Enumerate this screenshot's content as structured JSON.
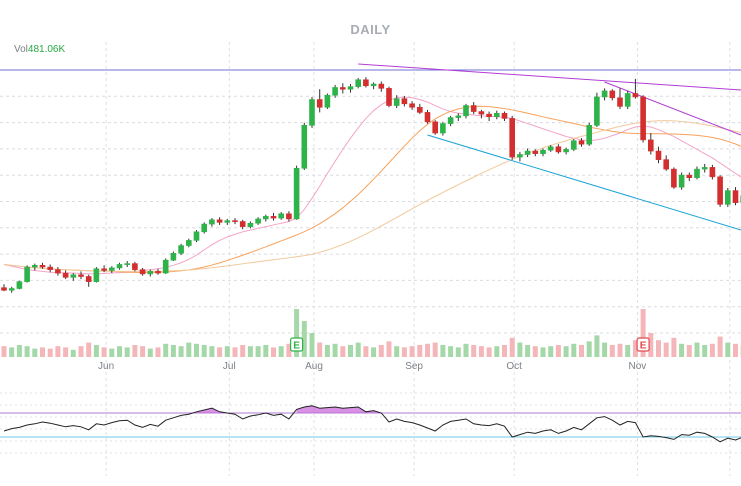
{
  "chart_data": {
    "type": "candlestick",
    "title": "DAILY",
    "volume_label": "Vol",
    "volume_value": "481.06K",
    "x_ticks": [
      "Jun",
      "Jul",
      "Aug",
      "Sep",
      "Oct",
      "Nov"
    ],
    "earnings_markers": [
      {
        "label": "E",
        "kind": "positive"
      },
      {
        "label": "E",
        "kind": "negative"
      }
    ],
    "candles": [
      [
        33.2,
        33.6,
        32.8,
        32.9
      ],
      [
        32.9,
        33.3,
        32.6,
        33.1
      ],
      [
        33.1,
        34.0,
        33.0,
        33.9
      ],
      [
        33.9,
        35.8,
        33.8,
        35.6
      ],
      [
        35.6,
        36.0,
        35.2,
        35.8
      ],
      [
        35.8,
        36.1,
        35.4,
        35.6
      ],
      [
        35.6,
        35.9,
        35.0,
        35.3
      ],
      [
        35.3,
        35.6,
        34.6,
        34.9
      ],
      [
        34.9,
        35.2,
        34.2,
        34.4
      ],
      [
        34.4,
        34.9,
        34.0,
        34.7
      ],
      [
        34.7,
        35.1,
        34.2,
        34.5
      ],
      [
        34.5,
        34.7,
        33.3,
        33.9
      ],
      [
        33.9,
        35.6,
        33.8,
        35.4
      ],
      [
        35.4,
        35.8,
        35.0,
        35.2
      ],
      [
        35.2,
        35.7,
        34.9,
        35.5
      ],
      [
        35.5,
        36.1,
        35.3,
        35.9
      ],
      [
        35.9,
        36.3,
        35.6,
        36.0
      ],
      [
        36.0,
        36.2,
        35.1,
        35.3
      ],
      [
        35.3,
        35.5,
        34.6,
        34.8
      ],
      [
        34.8,
        35.3,
        34.5,
        35.1
      ],
      [
        35.1,
        35.4,
        34.7,
        34.9
      ],
      [
        34.9,
        36.6,
        34.8,
        36.4
      ],
      [
        36.4,
        37.4,
        36.3,
        37.2
      ],
      [
        37.2,
        38.3,
        37.0,
        38.1
      ],
      [
        38.1,
        38.9,
        37.9,
        38.7
      ],
      [
        38.7,
        39.9,
        38.5,
        39.7
      ],
      [
        39.7,
        40.8,
        39.5,
        40.6
      ],
      [
        40.6,
        41.3,
        40.3,
        41.1
      ],
      [
        41.1,
        41.4,
        40.5,
        40.8
      ],
      [
        40.8,
        41.2,
        40.5,
        41.0
      ],
      [
        41.0,
        41.3,
        40.6,
        40.9
      ],
      [
        40.9,
        41.1,
        40.0,
        40.3
      ],
      [
        40.3,
        40.9,
        40.1,
        40.7
      ],
      [
        40.7,
        41.4,
        40.5,
        41.2
      ],
      [
        41.2,
        41.7,
        40.9,
        41.5
      ],
      [
        41.5,
        41.9,
        41.0,
        41.3
      ],
      [
        41.3,
        42.0,
        41.1,
        41.8
      ],
      [
        41.8,
        42.1,
        40.9,
        41.2
      ],
      [
        41.2,
        47.4,
        41.1,
        47.1
      ],
      [
        47.1,
        52.4,
        46.9,
        52.1
      ],
      [
        52.1,
        55.4,
        51.8,
        55.1
      ],
      [
        55.1,
        56.3,
        53.6,
        54.2
      ],
      [
        54.2,
        55.8,
        54.0,
        55.6
      ],
      [
        55.6,
        56.8,
        55.3,
        56.5
      ],
      [
        56.5,
        57.0,
        55.8,
        56.3
      ],
      [
        56.3,
        56.9,
        55.9,
        56.6
      ],
      [
        56.6,
        57.6,
        56.4,
        57.4
      ],
      [
        57.4,
        57.7,
        56.5,
        56.7
      ],
      [
        56.7,
        57.1,
        56.3,
        56.9
      ],
      [
        56.9,
        57.2,
        56.0,
        56.4
      ],
      [
        56.4,
        56.6,
        54.2,
        54.4
      ],
      [
        54.4,
        55.6,
        54.1,
        55.2
      ],
      [
        55.2,
        55.5,
        54.3,
        54.6
      ],
      [
        54.6,
        54.9,
        53.9,
        54.2
      ],
      [
        54.2,
        54.6,
        53.4,
        53.6
      ],
      [
        53.6,
        53.9,
        52.3,
        52.5
      ],
      [
        52.5,
        52.7,
        51.0,
        51.2
      ],
      [
        51.2,
        52.5,
        50.9,
        52.3
      ],
      [
        52.3,
        53.2,
        52.0,
        53.0
      ],
      [
        53.0,
        53.5,
        52.6,
        53.2
      ],
      [
        53.2,
        54.6,
        52.9,
        54.4
      ],
      [
        54.4,
        54.8,
        53.4,
        53.7
      ],
      [
        53.7,
        53.9,
        52.9,
        53.4
      ],
      [
        53.4,
        53.7,
        52.6,
        53.1
      ],
      [
        53.1,
        53.8,
        52.8,
        53.5
      ],
      [
        53.5,
        53.7,
        52.6,
        52.9
      ],
      [
        52.9,
        53.2,
        48.1,
        48.4
      ],
      [
        48.4,
        49.0,
        47.9,
        48.7
      ],
      [
        48.7,
        49.4,
        48.4,
        49.1
      ],
      [
        49.1,
        49.3,
        48.5,
        48.8
      ],
      [
        48.8,
        49.4,
        48.5,
        49.2
      ],
      [
        49.2,
        49.8,
        49.0,
        49.6
      ],
      [
        49.6,
        49.9,
        48.8,
        49.0
      ],
      [
        49.0,
        49.5,
        48.7,
        49.3
      ],
      [
        49.3,
        50.5,
        49.1,
        50.3
      ],
      [
        50.3,
        50.6,
        49.6,
        49.9
      ],
      [
        49.9,
        52.4,
        49.7,
        52.1
      ],
      [
        52.1,
        55.9,
        51.9,
        55.4
      ],
      [
        55.4,
        56.4,
        55.0,
        56.1
      ],
      [
        56.1,
        56.3,
        55.0,
        55.3
      ],
      [
        55.3,
        56.4,
        54.0,
        54.3
      ],
      [
        54.3,
        56.1,
        54.0,
        55.8
      ],
      [
        55.8,
        57.5,
        55.2,
        55.4
      ],
      [
        55.4,
        55.6,
        50.1,
        50.4
      ],
      [
        50.4,
        51.2,
        48.7,
        49.1
      ],
      [
        49.1,
        49.6,
        47.7,
        48.1
      ],
      [
        48.1,
        48.6,
        46.8,
        47.0
      ],
      [
        47.0,
        47.2,
        44.7,
        44.9
      ],
      [
        44.9,
        46.6,
        44.6,
        46.3
      ],
      [
        46.3,
        46.6,
        45.6,
        46.0
      ],
      [
        46.0,
        47.3,
        45.8,
        47.0
      ],
      [
        47.0,
        47.6,
        46.6,
        47.2
      ],
      [
        47.2,
        47.5,
        45.8,
        46.1
      ],
      [
        46.1,
        46.3,
        42.6,
        42.9
      ],
      [
        42.9,
        44.8,
        42.6,
        44.5
      ],
      [
        44.5,
        44.9,
        42.8,
        43.1
      ],
      [
        43.1,
        44.2,
        42.9,
        43.9
      ],
      [
        43.9,
        44.6,
        43.6,
        44.3
      ]
    ],
    "volume": [
      9,
      8,
      10,
      9,
      7,
      8,
      7,
      9,
      8,
      6,
      9,
      12,
      10,
      8,
      7,
      9,
      8,
      10,
      9,
      7,
      8,
      11,
      10,
      9,
      12,
      11,
      10,
      9,
      8,
      9,
      8,
      10,
      9,
      9,
      10,
      8,
      9,
      11,
      40,
      30,
      20,
      12,
      10,
      11,
      9,
      10,
      12,
      9,
      8,
      10,
      13,
      9,
      8,
      9,
      10,
      11,
      12,
      10,
      9,
      8,
      11,
      10,
      9,
      8,
      9,
      10,
      16,
      12,
      10,
      9,
      8,
      9,
      10,
      9,
      11,
      10,
      13,
      18,
      12,
      10,
      11,
      10,
      14,
      40,
      20,
      14,
      12,
      16,
      11,
      10,
      12,
      10,
      11,
      17,
      12,
      11,
      10,
      11
    ],
    "volume_up_color": "#a5d8a8",
    "volume_down_color": "#f4b6b8",
    "candle_up_color": "#2eb24a",
    "candle_down_color": "#d32f2f",
    "moving_average_colors": [
      "#f4a4c8",
      "#f7a25c",
      "#f1c99b"
    ],
    "trendline_colors": [
      "#b23cd3",
      "#1aa3d6",
      "#6f6fd8"
    ],
    "rsi_line_color": "#222222",
    "rsi_fill_color": "#c864d8",
    "rsi_band_color": "#b27ad6",
    "rsi_low_band_color": "#6fc9e6",
    "rsi_levels": [
      70,
      30
    ],
    "rsi": [
      40,
      44,
      46,
      50,
      52,
      55,
      53,
      50,
      47,
      49,
      47,
      42,
      52,
      50,
      54,
      57,
      58,
      50,
      46,
      51,
      48,
      58,
      62,
      66,
      68,
      72,
      75,
      78,
      72,
      70,
      68,
      60,
      65,
      67,
      70,
      66,
      68,
      60,
      76,
      80,
      82,
      78,
      79,
      80,
      78,
      79,
      80,
      72,
      74,
      70,
      55,
      60,
      56,
      54,
      50,
      45,
      40,
      50,
      56,
      58,
      60,
      52,
      50,
      49,
      52,
      48,
      30,
      34,
      38,
      36,
      40,
      42,
      36,
      40,
      46,
      42,
      52,
      62,
      64,
      58,
      50,
      56,
      54,
      30,
      32,
      31,
      29,
      26,
      34,
      33,
      38,
      36,
      30,
      22,
      28,
      25,
      30,
      32
    ],
    "sma_fast": [
      35.9,
      35.7,
      35.5,
      35.3,
      35.2,
      35.1,
      35.0,
      34.95,
      34.9,
      34.9,
      34.85,
      34.8,
      34.8,
      34.85,
      34.9,
      34.95,
      35.0,
      35.1,
      35.2,
      35.3,
      35.4,
      35.55,
      35.8,
      36.1,
      36.5,
      37.0,
      37.6,
      38.2,
      38.7,
      39.1,
      39.4,
      39.7,
      39.9,
      40.1,
      40.3,
      40.5,
      40.7,
      40.9,
      41.3,
      42.3,
      43.6,
      45.0,
      46.5,
      47.9,
      49.3,
      50.6,
      51.8,
      52.9,
      53.8,
      54.5,
      55.0,
      55.3,
      55.4,
      55.3,
      55.1,
      54.8,
      54.4,
      54.0,
      53.7,
      53.5,
      53.4,
      53.3,
      53.2,
      53.15,
      53.1,
      53.05,
      52.9,
      52.6,
      52.3,
      52.0,
      51.7,
      51.4,
      51.1,
      50.8,
      50.6,
      50.4,
      50.3,
      50.4,
      50.6,
      50.9,
      51.2,
      51.6,
      51.9,
      52.0,
      51.9,
      51.6,
      51.2,
      50.8,
      50.3,
      49.8,
      49.3,
      48.8,
      48.3,
      47.7,
      47.1,
      46.5,
      45.9,
      45.4
    ]
  }
}
